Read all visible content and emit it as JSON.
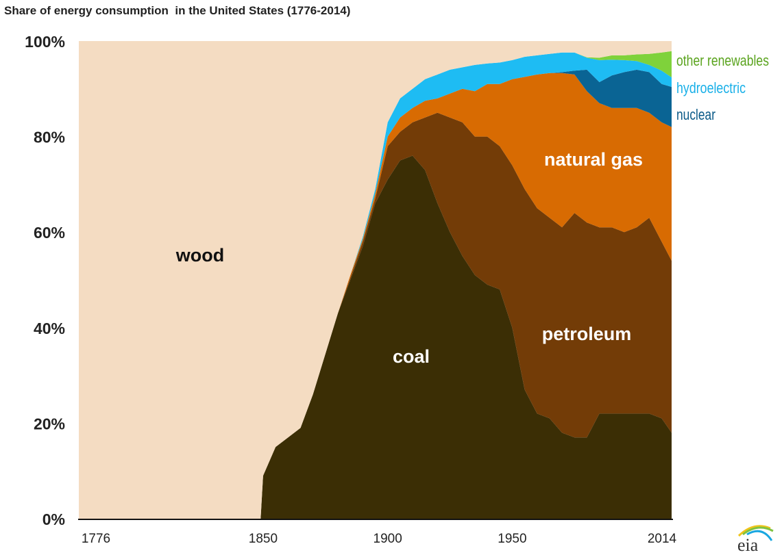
{
  "chart_data": {
    "type": "area",
    "stacked": true,
    "title": "Share of energy consumption  in the United States (1776-2014)",
    "xlabel": "",
    "ylabel": "",
    "xlim": [
      1776,
      2014
    ],
    "ylim": [
      0,
      100
    ],
    "x_ticks": [
      "1776",
      "1850",
      "1900",
      "1950",
      "2014"
    ],
    "y_ticks": [
      "0%",
      "20%",
      "40%",
      "60%",
      "80%",
      "100%"
    ],
    "grid": false,
    "legend": "right (direct labels)",
    "x": [
      1776,
      1849,
      1850,
      1855,
      1865,
      1870,
      1880,
      1885,
      1890,
      1895,
      1900,
      1905,
      1910,
      1915,
      1920,
      1925,
      1930,
      1935,
      1940,
      1945,
      1950,
      1955,
      1960,
      1965,
      1970,
      1975,
      1980,
      1985,
      1990,
      1995,
      2000,
      2005,
      2010,
      2014
    ],
    "series": [
      {
        "name": "coal",
        "color": "#3b2e05",
        "values": [
          0,
          0,
          9,
          15,
          19,
          26,
          43,
          50,
          57,
          66,
          71,
          75,
          76,
          73,
          66,
          60,
          55,
          51,
          49,
          48,
          40,
          27,
          22,
          21,
          18,
          17,
          17,
          22,
          22,
          22,
          22,
          22,
          21,
          18
        ]
      },
      {
        "name": "petroleum",
        "color": "#733c07",
        "values": [
          0,
          0,
          0,
          0,
          0,
          0,
          0,
          0.5,
          1,
          1,
          7,
          6,
          7,
          11,
          19,
          24,
          28,
          29,
          31,
          30,
          34,
          42,
          43,
          42,
          43,
          47,
          45,
          39,
          39,
          38,
          39,
          41,
          37,
          36
        ]
      },
      {
        "name": "natural gas",
        "color": "#d86b02",
        "values": [
          0,
          0,
          0,
          0,
          0,
          0,
          0,
          0.5,
          0.5,
          1,
          2,
          3,
          3,
          3.5,
          3,
          5,
          7,
          9.5,
          11,
          13,
          18,
          23.5,
          28,
          30.3,
          32.3,
          29,
          27.5,
          26,
          25,
          26,
          25,
          22,
          25,
          28
        ]
      },
      {
        "name": "nuclear",
        "color": "#0a6494",
        "values": [
          0,
          0,
          0,
          0,
          0,
          0,
          0,
          0,
          0,
          0,
          0,
          0,
          0,
          0,
          0,
          0,
          0,
          0,
          0,
          0,
          0,
          0,
          0,
          0,
          0.2,
          0.8,
          4.5,
          4.4,
          6.8,
          7.5,
          8,
          8.5,
          8,
          8.4
        ]
      },
      {
        "name": "hydroelectric",
        "color": "#1ebcf3",
        "values": [
          0,
          0,
          0,
          0,
          0,
          0,
          0,
          0,
          0.5,
          1,
          3,
          4,
          4,
          4.5,
          5,
          5,
          4.5,
          5.5,
          4.3,
          4.5,
          4,
          4.2,
          4,
          4,
          4.1,
          3.8,
          2.5,
          4.6,
          3.3,
          2.5,
          1.8,
          1.5,
          2.8,
          2
        ]
      },
      {
        "name": "other renewables",
        "color": "#7fd23b",
        "values": [
          0,
          0,
          0,
          0,
          0,
          0,
          0,
          0,
          0,
          0,
          0,
          0,
          0,
          0,
          0,
          0,
          0,
          0,
          0,
          0,
          0,
          0,
          0,
          0,
          0,
          0,
          0.1,
          0.5,
          0.9,
          1,
          1.4,
          2.3,
          3.8,
          5.5
        ]
      },
      {
        "name": "wood",
        "color": "#f4dcc2",
        "values": [
          100,
          100,
          91,
          85,
          81,
          74,
          57,
          49,
          41,
          31,
          17,
          12,
          10,
          8,
          7,
          6,
          5.5,
          5,
          4.7,
          4.5,
          4,
          3.3,
          3,
          2.7,
          2.4,
          2.4,
          3.4,
          3.5,
          3,
          3,
          2.8,
          2.7,
          2.4,
          2.1
        ]
      }
    ],
    "annotations": {
      "wood": "wood",
      "coal": "coal",
      "petroleum": "petroleum",
      "natural_gas": "natural gas",
      "nuclear": "nuclear",
      "hydroelectric": "hydroelectric",
      "other_renewables": "other renewables"
    },
    "label_colors": {
      "wood": "#111111",
      "inside": "#ffffff",
      "other_renewables": "#5ba41f",
      "hydroelectric": "#19b0e8",
      "nuclear": "#0b5a88"
    }
  },
  "logo": {
    "text": "eia"
  }
}
